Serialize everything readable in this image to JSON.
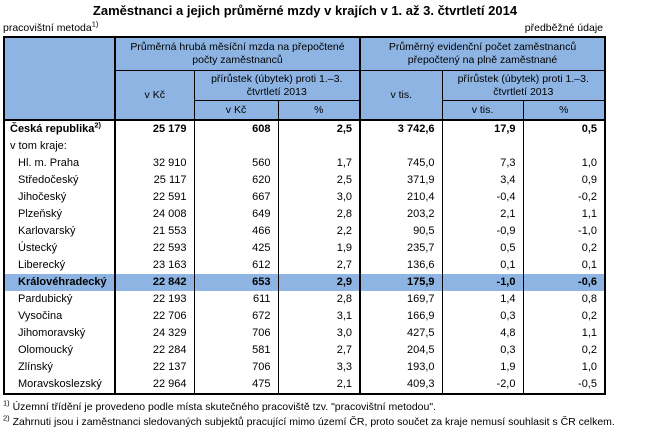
{
  "page": {
    "title": "Zaměstnanci a jejich průměrné mzdy v krajích v 1. až 3. čtvrtletí 2014",
    "meta_left": "pracovištní metoda",
    "meta_left_sup": "1)",
    "meta_right": "předběžné údaje"
  },
  "colors": {
    "header_blue": "#8DB4E2",
    "highlight_blue": "#8DB4E2",
    "border": "#000000"
  },
  "table": {
    "header": {
      "group1_title": "Průměrná hrubá měsíční mzda na přepočtené počty zaměstnanců",
      "group1_unit": "v Kč",
      "group1_delta_title": "přírůstek (úbytek) proti 1.–3. čtvrtletí 2013",
      "group1_delta_unit": "v Kč",
      "group1_delta_pct": "%",
      "group2_title": "Průměrný evidenční počet zaměstnanců přepočtený na plně zaměstnané",
      "group2_unit": "v tis.",
      "group2_delta_title": "přírůstek (úbytek) proti 1.–3. čtvrtletí 2013",
      "group2_delta_unit": "v tis.",
      "group2_delta_pct": "%"
    },
    "rows": [
      {
        "name": "Česká republika",
        "sup": "2)",
        "bold": true,
        "highlight": false,
        "indent": false,
        "values": [
          "25 179",
          "608",
          "2,5",
          "3 742,6",
          "17,9",
          "0,5"
        ]
      },
      {
        "name": "v tom kraje:",
        "sup": "",
        "bold": false,
        "highlight": false,
        "indent": false,
        "values": [
          "",
          "",
          "",
          "",
          "",
          ""
        ]
      },
      {
        "name": "Hl. m. Praha",
        "sup": "",
        "bold": false,
        "highlight": false,
        "indent": true,
        "values": [
          "32 910",
          "560",
          "1,7",
          "745,0",
          "7,3",
          "1,0"
        ]
      },
      {
        "name": "Středočeský",
        "sup": "",
        "bold": false,
        "highlight": false,
        "indent": true,
        "values": [
          "25 117",
          "620",
          "2,5",
          "371,9",
          "3,4",
          "0,9"
        ]
      },
      {
        "name": "Jihočeský",
        "sup": "",
        "bold": false,
        "highlight": false,
        "indent": true,
        "values": [
          "22 591",
          "667",
          "3,0",
          "210,4",
          "-0,4",
          "-0,2"
        ]
      },
      {
        "name": "Plzeňský",
        "sup": "",
        "bold": false,
        "highlight": false,
        "indent": true,
        "values": [
          "24 008",
          "649",
          "2,8",
          "203,2",
          "2,1",
          "1,1"
        ]
      },
      {
        "name": "Karlovarský",
        "sup": "",
        "bold": false,
        "highlight": false,
        "indent": true,
        "values": [
          "21 553",
          "466",
          "2,2",
          "90,5",
          "-0,9",
          "-1,0"
        ]
      },
      {
        "name": "Ústecký",
        "sup": "",
        "bold": false,
        "highlight": false,
        "indent": true,
        "values": [
          "22 593",
          "425",
          "1,9",
          "235,7",
          "0,5",
          "0,2"
        ]
      },
      {
        "name": "Liberecký",
        "sup": "",
        "bold": false,
        "highlight": false,
        "indent": true,
        "values": [
          "23 163",
          "612",
          "2,7",
          "136,6",
          "0,1",
          "0,1"
        ]
      },
      {
        "name": "Královéhradecký",
        "sup": "",
        "bold": true,
        "highlight": true,
        "indent": true,
        "values": [
          "22 842",
          "653",
          "2,9",
          "175,9",
          "-1,0",
          "-0,6"
        ]
      },
      {
        "name": "Pardubický",
        "sup": "",
        "bold": false,
        "highlight": false,
        "indent": true,
        "values": [
          "22 193",
          "611",
          "2,8",
          "169,7",
          "1,4",
          "0,8"
        ]
      },
      {
        "name": "Vysočina",
        "sup": "",
        "bold": false,
        "highlight": false,
        "indent": true,
        "values": [
          "22 706",
          "672",
          "3,1",
          "166,9",
          "0,3",
          "0,2"
        ]
      },
      {
        "name": "Jihomoravský",
        "sup": "",
        "bold": false,
        "highlight": false,
        "indent": true,
        "values": [
          "24 329",
          "706",
          "3,0",
          "427,5",
          "4,8",
          "1,1"
        ]
      },
      {
        "name": "Olomoucký",
        "sup": "",
        "bold": false,
        "highlight": false,
        "indent": true,
        "values": [
          "22 284",
          "581",
          "2,7",
          "204,5",
          "0,3",
          "0,2"
        ]
      },
      {
        "name": "Zlínský",
        "sup": "",
        "bold": false,
        "highlight": false,
        "indent": true,
        "values": [
          "22 137",
          "706",
          "3,3",
          "193,0",
          "1,9",
          "1,0"
        ]
      },
      {
        "name": "Moravskoslezský",
        "sup": "",
        "bold": false,
        "highlight": false,
        "indent": true,
        "values": [
          "22 964",
          "475",
          "2,1",
          "409,3",
          "-2,0",
          "-0,5"
        ]
      }
    ]
  },
  "footnotes": [
    {
      "sup": "1)",
      "text": "Územní třídění je provedeno podle místa skutečného pracoviště tzv. \"pracovištní metodou\"."
    },
    {
      "sup": "2)",
      "text": "Zahrnuti jsou i zaměstnanci sledovaných subjektů pracující mimo území ČR, proto součet za kraje nemusí souhlasit s ČR celkem."
    }
  ]
}
